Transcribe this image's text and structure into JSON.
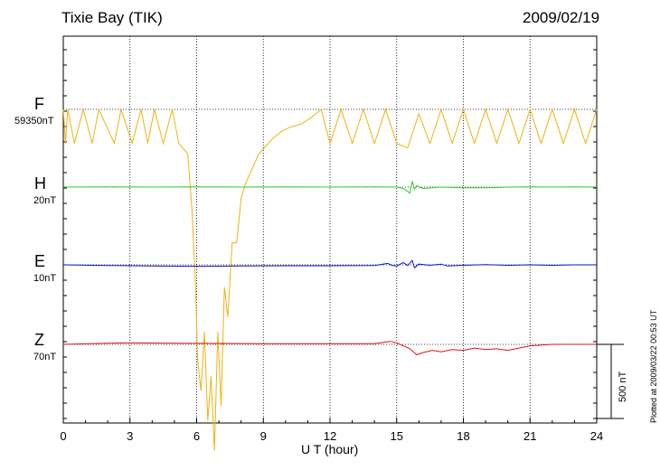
{
  "header": {
    "station": "Tixie Bay (TIK)",
    "date": "2009/02/19",
    "plotted": "Plotted at 2009/03/22 00:53 UT"
  },
  "scale_bar": {
    "label": "500 nT"
  },
  "colors": {
    "F": "#f2b10f",
    "H": "#2ad32a",
    "E": "#0f0fcc",
    "Z": "#dd1414"
  },
  "chart_data": {
    "type": "line",
    "xlabel": "U T (hour)",
    "xlim": [
      0,
      24
    ],
    "xticks": [
      "0",
      "3",
      "6",
      "9",
      "12",
      "15",
      "18",
      "21",
      "24"
    ],
    "scale_bar_nT": 500,
    "channels": [
      {
        "name": "F",
        "baseline": "59350nT",
        "color": "#f2b10f"
      },
      {
        "name": "H",
        "baseline": "20nT",
        "color": "#2ad32a"
      },
      {
        "name": "E",
        "baseline": "10nT",
        "color": "#0f0fcc"
      },
      {
        "name": "Z",
        "baseline": "70nT",
        "color": "#dd1414"
      }
    ],
    "series": [
      {
        "name": "F",
        "x": [
          0,
          0.1,
          0.2,
          0.5,
          0.9,
          1.3,
          1.6,
          2.3,
          2.6,
          3.1,
          3.5,
          3.8,
          4.1,
          4.5,
          4.9,
          5.2,
          5.6,
          5.8,
          5.95,
          6.05,
          6.2,
          6.35,
          6.5,
          6.65,
          6.8,
          6.95,
          7.1,
          7.25,
          7.4,
          7.6,
          7.8,
          8.0,
          8.2,
          8.5,
          8.8,
          9.1,
          9.4,
          9.8,
          10.2,
          10.7,
          11.2,
          11.6,
          12.0,
          12.5,
          13.0,
          13.5,
          14.0,
          14.5,
          15.0,
          15.5,
          16.0,
          16.5,
          17.0,
          17.5,
          18.0,
          18.5,
          19.0,
          19.5,
          20.0,
          20.5,
          21.0,
          21.5,
          22.0,
          22.5,
          23.0,
          23.5,
          24.0
        ],
        "y": [
          0,
          -230,
          0,
          -230,
          0,
          -230,
          0,
          -230,
          0,
          -230,
          0,
          -230,
          0,
          -230,
          0,
          -230,
          -300,
          -700,
          -1200,
          -1700,
          -1900,
          -1500,
          -2100,
          -1800,
          -2300,
          -1500,
          -2000,
          -1200,
          -1400,
          -900,
          -900,
          -600,
          -500,
          -400,
          -300,
          -250,
          -200,
          -150,
          -120,
          -100,
          -50,
          0,
          -230,
          0,
          -230,
          0,
          -230,
          0,
          -230,
          -260,
          -30,
          -230,
          0,
          -230,
          0,
          -230,
          0,
          -230,
          0,
          -230,
          0,
          -230,
          0,
          -230,
          0,
          -230,
          0
        ]
      },
      {
        "name": "H",
        "x": [
          0,
          2,
          4,
          6,
          8,
          10,
          12,
          14,
          15.0,
          15.3,
          15.6,
          15.7,
          15.8,
          15.9,
          16.2,
          16.6,
          17,
          18,
          19,
          19.5,
          20,
          21,
          22,
          23,
          24
        ],
        "y": [
          0,
          2,
          0,
          2,
          0,
          1,
          0,
          1,
          0,
          -10,
          -40,
          40,
          -15,
          10,
          -10,
          -5,
          0,
          -5,
          -5,
          -3,
          0,
          2,
          0,
          2,
          0
        ]
      },
      {
        "name": "E",
        "x": [
          0,
          2,
          4,
          6,
          8,
          10,
          12,
          14,
          14.6,
          14.8,
          15.0,
          15.3,
          15.5,
          15.7,
          15.8,
          16,
          16.5,
          17,
          17.3,
          18,
          19,
          20,
          21,
          22,
          23,
          24
        ],
        "y": [
          0,
          -4,
          -8,
          -10,
          -8,
          -6,
          -6,
          -4,
          10,
          -5,
          -8,
          15,
          -5,
          30,
          -20,
          5,
          -3,
          5,
          -8,
          -3,
          2,
          -3,
          0,
          -3,
          0,
          0
        ]
      },
      {
        "name": "Z",
        "x": [
          0,
          2,
          3,
          5,
          7,
          9,
          11,
          13,
          14,
          14.7,
          15,
          15.3,
          15.6,
          15.9,
          16.2,
          16.6,
          17,
          17.5,
          18,
          18.5,
          19,
          19.5,
          20,
          20.5,
          21,
          22,
          23,
          24
        ],
        "y": [
          0,
          8,
          10,
          8,
          6,
          5,
          4,
          4,
          4,
          20,
          10,
          -10,
          -30,
          -70,
          -55,
          -40,
          -50,
          -35,
          -40,
          -25,
          -35,
          -30,
          -40,
          -25,
          -10,
          0,
          0,
          0
        ]
      }
    ]
  }
}
